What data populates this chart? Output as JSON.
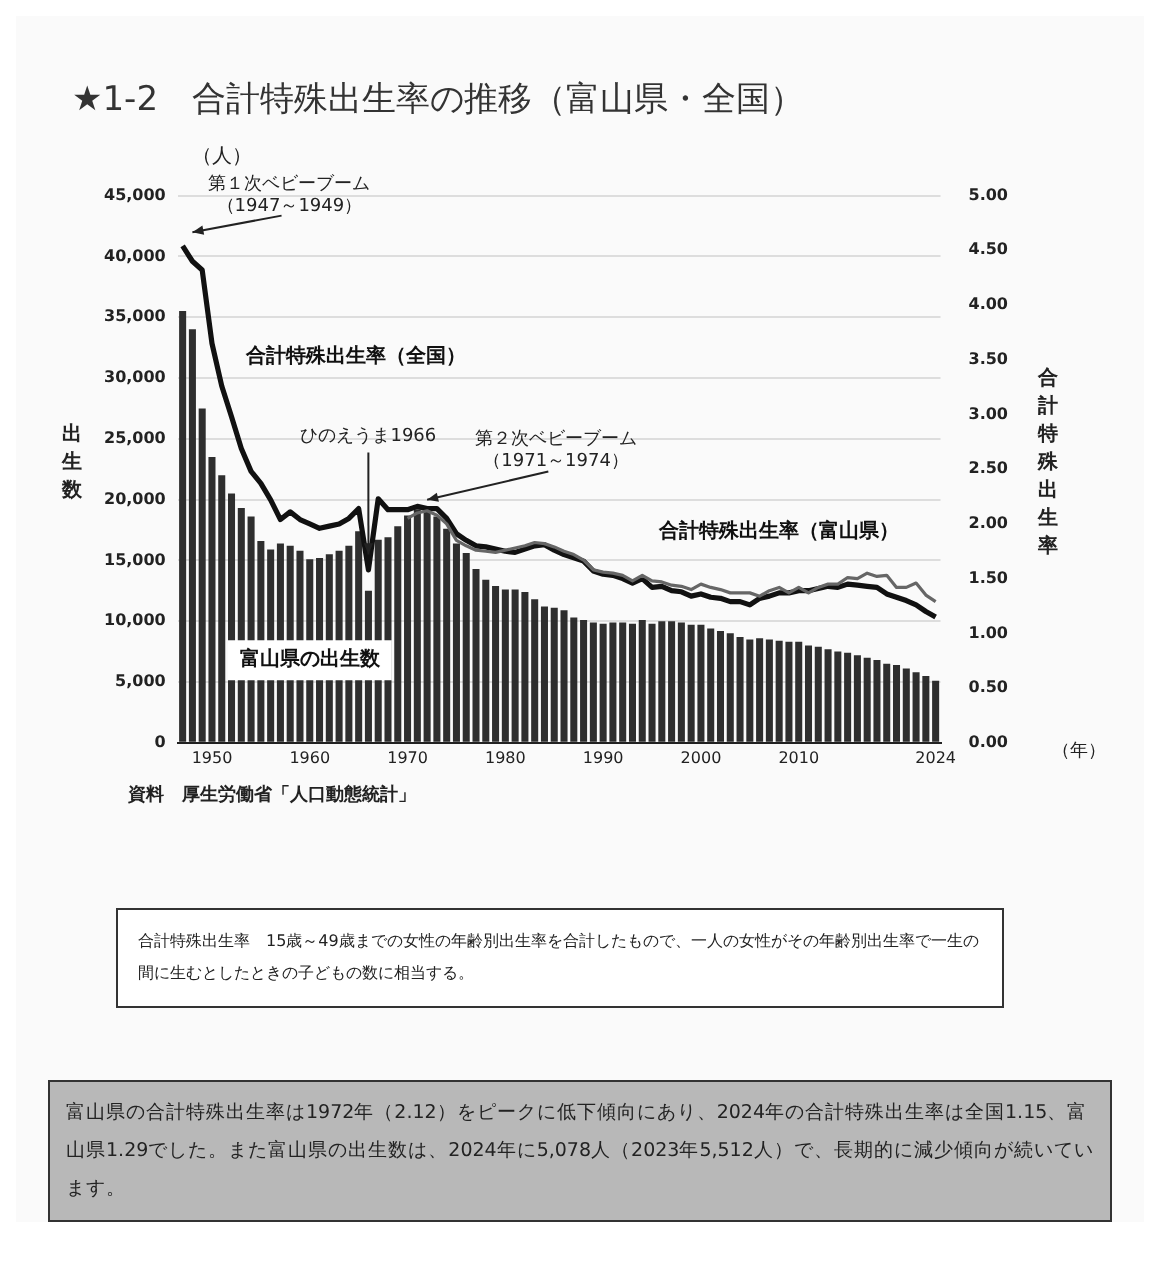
{
  "chart_data": {
    "type": "bar",
    "title": "★1-2　合計特殊出生率の推移（富山県・全国）",
    "ylabel": "出生数",
    "y2label": "合計特殊出生率",
    "x": [
      1947,
      1948,
      1949,
      1950,
      1951,
      1952,
      1953,
      1954,
      1955,
      1956,
      1957,
      1958,
      1959,
      1960,
      1961,
      1962,
      1963,
      1964,
      1965,
      1966,
      1967,
      1968,
      1969,
      1970,
      1971,
      1972,
      1973,
      1974,
      1975,
      1976,
      1977,
      1978,
      1979,
      1980,
      1981,
      1982,
      1983,
      1984,
      1985,
      1986,
      1987,
      1988,
      1989,
      1990,
      1991,
      1992,
      1993,
      1994,
      1995,
      1996,
      1997,
      1998,
      1999,
      2000,
      2001,
      2002,
      2003,
      2004,
      2005,
      2006,
      2007,
      2008,
      2009,
      2010,
      2011,
      2012,
      2013,
      2014,
      2015,
      2016,
      2017,
      2018,
      2019,
      2020,
      2021,
      2022,
      2023,
      2024
    ],
    "series": [
      {
        "name": "富山県の出生数",
        "color": "#2e2e2e",
        "values": [
          35500,
          34000,
          27500,
          23500,
          22000,
          20500,
          19300,
          18600,
          16600,
          15900,
          16400,
          16200,
          15800,
          15100,
          15200,
          15500,
          15800,
          16200,
          17400,
          12500,
          16700,
          16900,
          17800,
          18700,
          19200,
          19000,
          18600,
          17600,
          16400,
          15600,
          14300,
          13400,
          12900,
          12600,
          12600,
          12400,
          11800,
          11200,
          11100,
          10900,
          10300,
          10100,
          9900,
          9800,
          9900,
          9900,
          9800,
          10100,
          9800,
          10000,
          10000,
          9900,
          9700,
          9700,
          9400,
          9200,
          9000,
          8700,
          8500,
          8600,
          8500,
          8400,
          8300,
          8300,
          8000,
          7900,
          7700,
          7500,
          7400,
          7200,
          7000,
          6800,
          6500,
          6400,
          6100,
          5800,
          5500,
          5100
        ]
      },
      {
        "name": "合計特殊出生率（全国）",
        "type": "line",
        "axis": "y2",
        "color": "#111111",
        "values": [
          4.54,
          4.4,
          4.32,
          3.65,
          3.26,
          2.98,
          2.69,
          2.48,
          2.37,
          2.22,
          2.04,
          2.11,
          2.04,
          2.0,
          1.96,
          1.98,
          2.0,
          2.05,
          2.14,
          1.58,
          2.23,
          2.13,
          2.13,
          2.13,
          2.16,
          2.14,
          2.14,
          2.05,
          1.91,
          1.85,
          1.8,
          1.79,
          1.77,
          1.75,
          1.74,
          1.77,
          1.8,
          1.81,
          1.76,
          1.72,
          1.69,
          1.66,
          1.57,
          1.54,
          1.53,
          1.5,
          1.46,
          1.5,
          1.42,
          1.43,
          1.39,
          1.38,
          1.34,
          1.36,
          1.33,
          1.32,
          1.29,
          1.29,
          1.26,
          1.32,
          1.34,
          1.37,
          1.37,
          1.39,
          1.39,
          1.41,
          1.43,
          1.42,
          1.45,
          1.44,
          1.43,
          1.42,
          1.36,
          1.33,
          1.3,
          1.26,
          1.2,
          1.15
        ]
      },
      {
        "name": "合計特殊出生率（富山県）",
        "type": "line",
        "axis": "y2",
        "color": "#666666",
        "x": [
          1970,
          1971,
          1972,
          1973,
          1974,
          1975,
          1976,
          1977,
          1978,
          1979,
          1980,
          1981,
          1982,
          1983,
          1984,
          1985,
          1986,
          1987,
          1988,
          1989,
          1990,
          1991,
          1992,
          1993,
          1994,
          1995,
          1996,
          1997,
          1998,
          1999,
          2000,
          2001,
          2002,
          2003,
          2004,
          2005,
          2006,
          2007,
          2008,
          2009,
          2010,
          2011,
          2012,
          2013,
          2014,
          2015,
          2016,
          2017,
          2018,
          2019,
          2020,
          2021,
          2022,
          2023,
          2024
        ],
        "values": [
          2.05,
          2.1,
          2.12,
          2.08,
          2.0,
          1.85,
          1.8,
          1.76,
          1.75,
          1.74,
          1.76,
          1.78,
          1.8,
          1.83,
          1.82,
          1.79,
          1.75,
          1.72,
          1.67,
          1.58,
          1.56,
          1.55,
          1.53,
          1.48,
          1.53,
          1.48,
          1.47,
          1.44,
          1.43,
          1.4,
          1.45,
          1.42,
          1.4,
          1.37,
          1.37,
          1.37,
          1.34,
          1.39,
          1.42,
          1.37,
          1.42,
          1.37,
          1.42,
          1.45,
          1.45,
          1.51,
          1.5,
          1.55,
          1.52,
          1.53,
          1.42,
          1.42,
          1.46,
          1.35,
          1.29
        ]
      }
    ],
    "xlim": [
      1946.5,
      2024.5
    ],
    "xticks": [
      1950,
      1960,
      1970,
      1980,
      1990,
      2000,
      2010,
      2024
    ],
    "ylim": [
      0,
      45000
    ],
    "yticks": [
      {
        "value": 0,
        "label": "0"
      },
      {
        "value": 5000,
        "label": "5,000"
      },
      {
        "value": 10000,
        "label": "10,000"
      },
      {
        "value": 15000,
        "label": "15,000"
      },
      {
        "value": 20000,
        "label": "20,000"
      },
      {
        "value": 25000,
        "label": "25,000"
      },
      {
        "value": 30000,
        "label": "30,000"
      },
      {
        "value": 35000,
        "label": "35,000"
      },
      {
        "value": 40000,
        "label": "40,000"
      },
      {
        "value": 45000,
        "label": "45,000"
      }
    ],
    "y2lim": [
      0,
      5
    ],
    "y2ticks": [
      {
        "value": 0,
        "label": "0.00"
      },
      {
        "value": 0.5,
        "label": "0.50"
      },
      {
        "value": 1,
        "label": "1.00"
      },
      {
        "value": 1.5,
        "label": "1.50"
      },
      {
        "value": 2,
        "label": "2.00"
      },
      {
        "value": 2.5,
        "label": "2.50"
      },
      {
        "value": 3,
        "label": "3.00"
      },
      {
        "value": 3.5,
        "label": "3.50"
      },
      {
        "value": 4,
        "label": "4.00"
      },
      {
        "value": 4.5,
        "label": "4.50"
      },
      {
        "value": 5,
        "label": "5.00"
      }
    ],
    "grid": "y",
    "legend": false,
    "annotations": [
      {
        "text": "第１次ベビーブーム（1947～1949）",
        "x": 1948,
        "y": 41500
      },
      {
        "text": "ひのえうま1966",
        "x": 1966,
        "y": 15000
      },
      {
        "text": "第２次ベビーブーム（1971～1974）",
        "x": 1972,
        "y": 19500
      },
      "（人）",
      "（年）",
      "資料　厚生労働省「人口動態統計」",
      "合計特殊出生率　15歳～49歳までの女性の年齢別出生率を合計したもので、一人の女性がその年齢別出生率で一生の間に生むとしたときの子どもの数に相当する。",
      "富山県の合計特殊出生率は1972年（2.12）をピークに低下傾向にあり、2024年の合計特殊出生率は全国1.15、富山県1.29でした。また富山県の出生数は、2024年に5,078人（2023年5,512人）で、長期的に減少傾向が続いています。"
    ]
  }
}
